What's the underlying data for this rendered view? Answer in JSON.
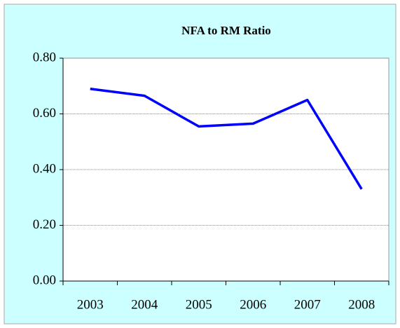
{
  "chart_data": {
    "type": "line",
    "title": "NFA to RM Ratio",
    "categories": [
      "2003",
      "2004",
      "2005",
      "2006",
      "2007",
      "2008"
    ],
    "series": [
      {
        "name": "NFA to RM Ratio",
        "color": "#0000ff",
        "values": [
          0.69,
          0.665,
          0.555,
          0.565,
          0.65,
          0.33
        ]
      }
    ],
    "ylim": [
      0,
      0.8
    ],
    "yticks": [
      {
        "value": 0,
        "label": "0.00"
      },
      {
        "value": 0.2,
        "label": "0.20"
      },
      {
        "value": 0.4,
        "label": "0.40"
      },
      {
        "value": 0.6,
        "label": "0.60"
      },
      {
        "value": 0.8,
        "label": "0.80"
      }
    ],
    "grid": true,
    "background": "#ccffff"
  }
}
